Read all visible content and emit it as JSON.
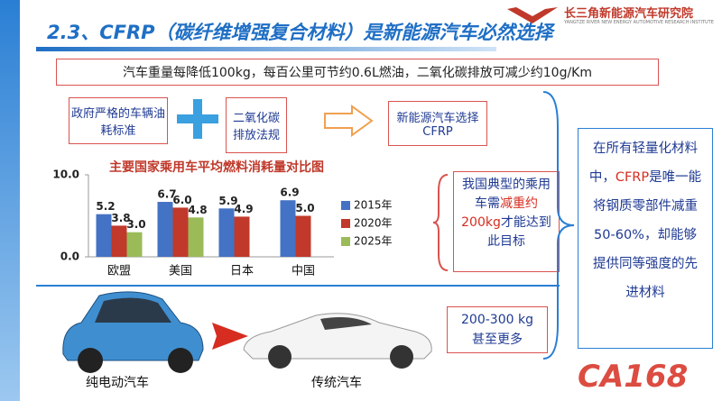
{
  "header": {
    "title": "2.3、CFRP（碳纤维增强复合材料）是新能源汽车必然选择",
    "logo": "长三角新能源汽车研究院",
    "logo_sub": "YANGTZE RIVER NEW ENERGY AUTOMOTIVE RESEARCH INSTITUTE"
  },
  "banner": "汽车重量每降低100kg，每百公里可节约0.6L燃油，二氧化碳排放可减少约10g/Km",
  "drivers": {
    "policy": "政府严格的车辆油耗标准",
    "emission": "二氧化碳排放法规",
    "result": "新能源汽车选择CFRP"
  },
  "target_box": {
    "before": "我国典型的乘用车需",
    "highlight": "减重约200kg",
    "after": "才能达到此目标"
  },
  "claim_box": {
    "before": "在所有轻量化材料中，",
    "highlight": "CFRP",
    "after": "是唯一能将钢质零部件减重50-60%，却能够提供同等强度的先进材料"
  },
  "weight_box": {
    "line1": "200-300 kg",
    "line2": "甚至更多"
  },
  "cars": {
    "ev": "纯电动汽车",
    "conventional": "传统汽车"
  },
  "watermark": "CA168",
  "chart_data": {
    "type": "bar",
    "title": "主要国家乘用车平均燃料消耗量对比图",
    "categories": [
      "欧盟",
      "美国",
      "日本",
      "中国"
    ],
    "series": [
      {
        "name": "2015年",
        "color": "#4472c4",
        "values": [
          5.2,
          6.7,
          5.9,
          6.9
        ],
        "value_labels": [
          "5.2",
          "6.7",
          "5.9",
          "6.9"
        ]
      },
      {
        "name": "2020年",
        "color": "#c0392b",
        "values": [
          3.8,
          6.0,
          4.9,
          5.0
        ],
        "value_labels": [
          "3.8",
          "6.0",
          "4.9",
          "5.0"
        ]
      },
      {
        "name": "2025年",
        "color": "#9bbb59",
        "values": [
          3.0,
          4.8,
          null,
          null
        ],
        "value_labels": [
          "3.0",
          "4.8",
          null,
          null
        ]
      }
    ],
    "ylim": [
      0,
      10
    ],
    "yticks": [
      {
        "value": 0,
        "label": "0.0"
      },
      {
        "value": 10,
        "label": "10.0"
      }
    ]
  }
}
